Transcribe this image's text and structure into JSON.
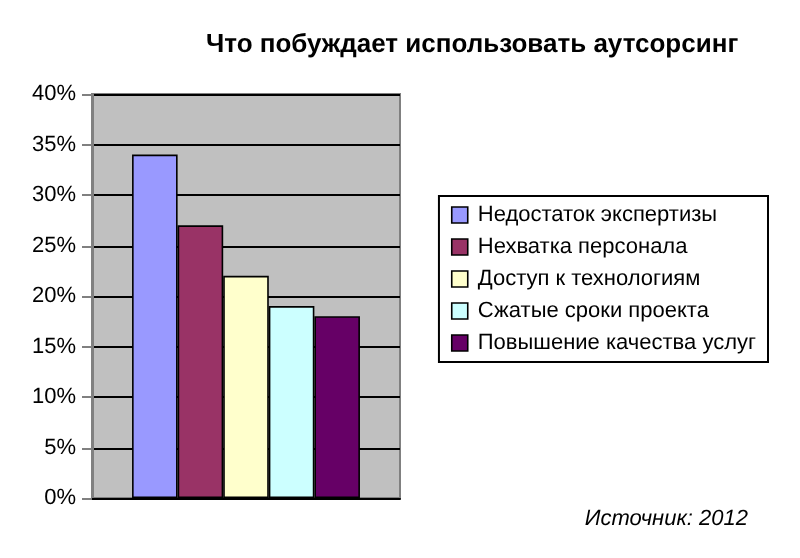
{
  "chart_data": {
    "type": "bar",
    "title": "Что побуждает использовать аутсорсинг",
    "categories": [
      null
    ],
    "series": [
      {
        "name": "Недостаток экспертизы",
        "color": "#9999ff",
        "values": [
          34
        ]
      },
      {
        "name": "Нехватка персонала",
        "color": "#993366",
        "values": [
          27
        ]
      },
      {
        "name": "Доступ к технологиям",
        "color": "#ffffcc",
        "values": [
          22
        ]
      },
      {
        "name": "Сжатые сроки проекта",
        "color": "#ccffff",
        "values": [
          19
        ]
      },
      {
        "name": "Повышение качества услуг",
        "color": "#660066",
        "values": [
          18
        ]
      }
    ],
    "ylim": [
      0,
      40
    ],
    "yticks": [
      {
        "value": 0,
        "label": "0%"
      },
      {
        "value": 5,
        "label": "5%"
      },
      {
        "value": 10,
        "label": "10%"
      },
      {
        "value": 15,
        "label": "15%"
      },
      {
        "value": 20,
        "label": "20%"
      },
      {
        "value": 25,
        "label": "25%"
      },
      {
        "value": 30,
        "label": "30%"
      },
      {
        "value": 35,
        "label": "35%"
      },
      {
        "value": 40,
        "label": "40%"
      }
    ],
    "grid": "y",
    "legend": "right",
    "annotations": [
      "Источник: 2012"
    ]
  }
}
